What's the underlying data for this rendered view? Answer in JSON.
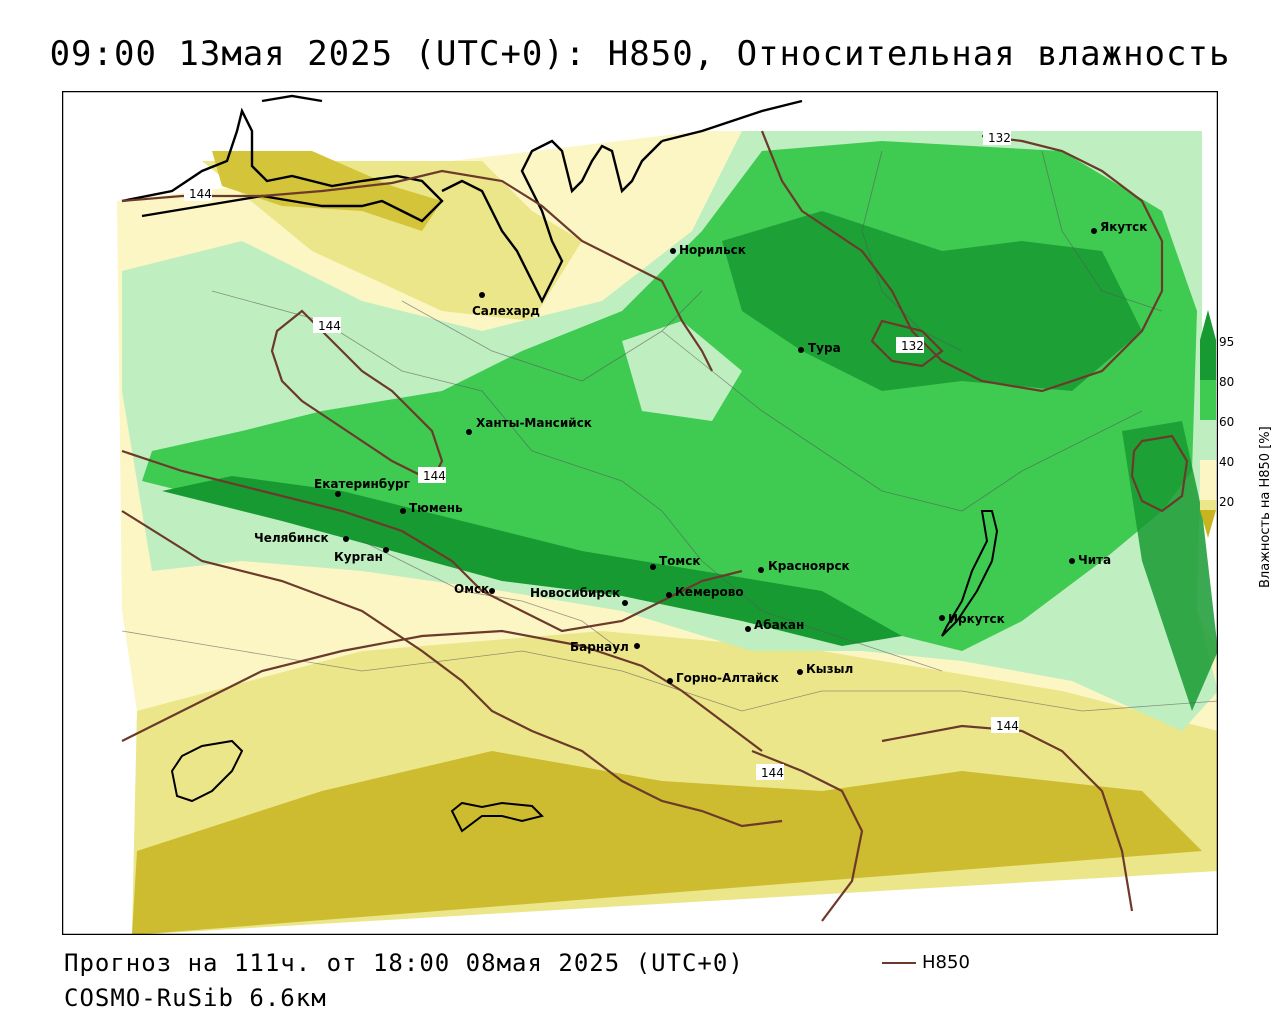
{
  "title": "09:00 13мая 2025 (UTC+0): H850, Относительная влажность",
  "footer": {
    "forecast": "Прогноз на 111ч. от 18:00 08мая 2025 (UTC+0)",
    "model": "COSMO-RuSib 6.6км"
  },
  "legend": {
    "line_label": "H850",
    "line_color": "#6b3a2a",
    "colorbar_label": "Влажность на H850 [%]",
    "ticks": [
      "95",
      "80",
      "60",
      "40",
      "20"
    ],
    "colors": {
      "very_dry": "#c8b41e",
      "dry": "#ece68a",
      "slightly_dry": "#fbf6c4",
      "neutral": "#ffffff",
      "moist": "#bfeec0",
      "wet": "#3fca52",
      "very_wet": "#189a33"
    }
  },
  "cities": [
    {
      "name": "Салехард"
    },
    {
      "name": "Норильск"
    },
    {
      "name": "Якутск"
    },
    {
      "name": "Тура"
    },
    {
      "name": "Ханты-Мансийск"
    },
    {
      "name": "Екатеринбург"
    },
    {
      "name": "Тюмень"
    },
    {
      "name": "Челябинск"
    },
    {
      "name": "Курган"
    },
    {
      "name": "Омск"
    },
    {
      "name": "Новосибирск"
    },
    {
      "name": "Томск"
    },
    {
      "name": "Кемерово"
    },
    {
      "name": "Красноярск"
    },
    {
      "name": "Абакан"
    },
    {
      "name": "Барнаул"
    },
    {
      "name": "Горно-Алтайск"
    },
    {
      "name": "Кызыл"
    },
    {
      "name": "Иркутск"
    },
    {
      "name": "Чита"
    }
  ],
  "isolines": [
    {
      "value": "144"
    },
    {
      "value": "144"
    },
    {
      "value": "144"
    },
    {
      "value": "144"
    },
    {
      "value": "144"
    },
    {
      "value": "132"
    },
    {
      "value": "132"
    }
  ]
}
